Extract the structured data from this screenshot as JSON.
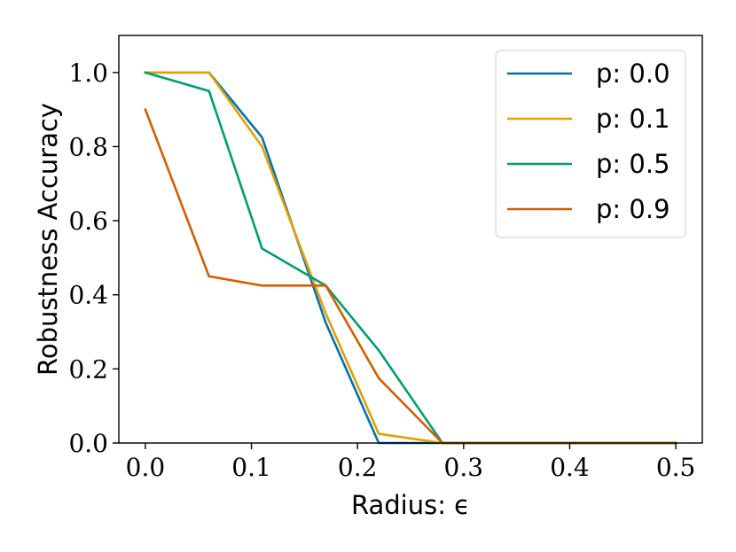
{
  "chart_data": {
    "type": "line",
    "title": "",
    "xlabel": "Radius: ϵ",
    "ylabel": "Robustness Accuracy",
    "xlim": [
      -0.025,
      0.525
    ],
    "ylim": [
      0.0,
      1.1
    ],
    "xticks": [
      0.0,
      0.1,
      0.2,
      0.3,
      0.4,
      0.5
    ],
    "xtick_labels": [
      "0.0",
      "0.1",
      "0.2",
      "0.3",
      "0.4",
      "0.5"
    ],
    "yticks": [
      0.0,
      0.2,
      0.4,
      0.6,
      0.8,
      1.0
    ],
    "ytick_labels": [
      "0.0",
      "0.2",
      "0.4",
      "0.6",
      "0.8",
      "1.0"
    ],
    "grid": false,
    "legend_position": "top-right",
    "series": [
      {
        "name": "p: 0.0",
        "color": "#0072B2",
        "x": [
          0.0,
          0.06,
          0.11,
          0.17,
          0.22,
          0.28,
          0.33,
          0.39,
          0.44,
          0.5
        ],
        "y": [
          1.0,
          1.0,
          0.825,
          0.325,
          0.0,
          0.0,
          0.0,
          0.0,
          0.0,
          0.0
        ]
      },
      {
        "name": "p: 0.1",
        "color": "#E69F00",
        "x": [
          0.0,
          0.06,
          0.11,
          0.17,
          0.22,
          0.28,
          0.33,
          0.39,
          0.44,
          0.5
        ],
        "y": [
          1.0,
          1.0,
          0.8,
          0.35,
          0.025,
          0.0,
          0.0,
          0.0,
          0.0,
          0.0
        ]
      },
      {
        "name": "p: 0.5",
        "color": "#009E73",
        "x": [
          0.0,
          0.06,
          0.11,
          0.17,
          0.22,
          0.28,
          0.33,
          0.39,
          0.44,
          0.5
        ],
        "y": [
          1.0,
          0.95,
          0.525,
          0.425,
          0.25,
          0.0,
          0.0,
          0.0,
          0.0,
          0.0
        ]
      },
      {
        "name": "p: 0.9",
        "color": "#D55E00",
        "x": [
          0.0,
          0.06,
          0.11,
          0.17,
          0.22,
          0.28,
          0.33,
          0.39,
          0.44,
          0.5
        ],
        "y": [
          0.9,
          0.45,
          0.425,
          0.425,
          0.175,
          0.0,
          0.0,
          0.0,
          0.0,
          0.0
        ]
      }
    ]
  }
}
